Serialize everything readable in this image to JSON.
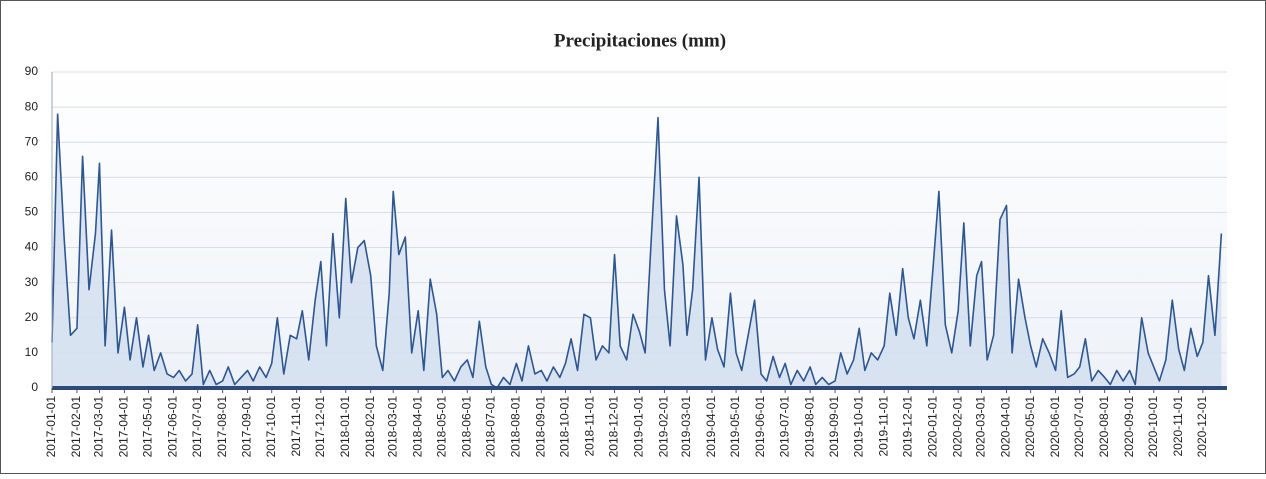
{
  "chart_data": {
    "type": "area",
    "title": "Precipitaciones (mm)",
    "x": [
      "2017-01-01",
      "2017-01-08",
      "2017-01-16",
      "2017-01-24",
      "2017-02-01",
      "2017-02-08",
      "2017-02-16",
      "2017-02-24",
      "2017-03-01",
      "2017-03-08",
      "2017-03-16",
      "2017-03-24",
      "2017-04-01",
      "2017-04-08",
      "2017-04-16",
      "2017-04-24",
      "2017-05-01",
      "2017-05-08",
      "2017-05-16",
      "2017-05-24",
      "2017-06-01",
      "2017-06-08",
      "2017-06-16",
      "2017-06-24",
      "2017-07-01",
      "2017-07-08",
      "2017-07-16",
      "2017-07-24",
      "2017-08-01",
      "2017-08-08",
      "2017-08-16",
      "2017-08-24",
      "2017-09-01",
      "2017-09-08",
      "2017-09-16",
      "2017-09-24",
      "2017-10-01",
      "2017-10-08",
      "2017-10-16",
      "2017-10-24",
      "2017-11-01",
      "2017-11-08",
      "2017-11-16",
      "2017-11-24",
      "2017-12-01",
      "2017-12-08",
      "2017-12-16",
      "2017-12-24",
      "2018-01-01",
      "2018-01-08",
      "2018-01-16",
      "2018-01-24",
      "2018-02-01",
      "2018-02-08",
      "2018-02-16",
      "2018-02-24",
      "2018-03-01",
      "2018-03-08",
      "2018-03-16",
      "2018-03-24",
      "2018-04-01",
      "2018-04-08",
      "2018-04-16",
      "2018-04-24",
      "2018-05-01",
      "2018-05-08",
      "2018-05-16",
      "2018-05-24",
      "2018-06-01",
      "2018-06-08",
      "2018-06-16",
      "2018-06-24",
      "2018-07-01",
      "2018-07-08",
      "2018-07-16",
      "2018-07-24",
      "2018-08-01",
      "2018-08-08",
      "2018-08-16",
      "2018-08-24",
      "2018-09-01",
      "2018-09-08",
      "2018-09-16",
      "2018-09-24",
      "2018-10-01",
      "2018-10-08",
      "2018-10-16",
      "2018-10-24",
      "2018-11-01",
      "2018-11-08",
      "2018-11-16",
      "2018-11-24",
      "2018-12-01",
      "2018-12-08",
      "2018-12-16",
      "2018-12-24",
      "2019-01-01",
      "2019-01-08",
      "2019-01-16",
      "2019-01-24",
      "2019-02-01",
      "2019-02-08",
      "2019-02-16",
      "2019-02-24",
      "2019-03-01",
      "2019-03-08",
      "2019-03-16",
      "2019-03-24",
      "2019-04-01",
      "2019-04-08",
      "2019-04-16",
      "2019-04-24",
      "2019-05-01",
      "2019-05-08",
      "2019-05-16",
      "2019-05-24",
      "2019-06-01",
      "2019-06-08",
      "2019-06-16",
      "2019-06-24",
      "2019-07-01",
      "2019-07-08",
      "2019-07-16",
      "2019-07-24",
      "2019-08-01",
      "2019-08-08",
      "2019-08-16",
      "2019-08-24",
      "2019-09-01",
      "2019-09-08",
      "2019-09-16",
      "2019-09-24",
      "2019-10-01",
      "2019-10-08",
      "2019-10-16",
      "2019-10-24",
      "2019-11-01",
      "2019-11-08",
      "2019-11-16",
      "2019-11-24",
      "2019-12-01",
      "2019-12-08",
      "2019-12-16",
      "2019-12-24",
      "2020-01-01",
      "2020-01-08",
      "2020-01-16",
      "2020-01-24",
      "2020-02-01",
      "2020-02-08",
      "2020-02-16",
      "2020-02-24",
      "2020-03-01",
      "2020-03-08",
      "2020-03-16",
      "2020-03-24",
      "2020-04-01",
      "2020-04-08",
      "2020-04-16",
      "2020-04-24",
      "2020-05-01",
      "2020-05-08",
      "2020-05-16",
      "2020-05-24",
      "2020-06-01",
      "2020-06-08",
      "2020-06-16",
      "2020-06-24",
      "2020-07-01",
      "2020-07-08",
      "2020-07-16",
      "2020-07-24",
      "2020-08-01",
      "2020-08-08",
      "2020-08-16",
      "2020-08-24",
      "2020-09-01",
      "2020-09-08",
      "2020-09-16",
      "2020-09-24",
      "2020-10-01",
      "2020-10-08",
      "2020-10-16",
      "2020-10-24",
      "2020-11-01",
      "2020-11-08",
      "2020-11-16",
      "2020-11-24",
      "2020-12-01",
      "2020-12-08",
      "2020-12-16",
      "2020-12-24"
    ],
    "series": [
      {
        "color": "#2e5790",
        "fill": "#d3dff0",
        "values": [
          13,
          78,
          43,
          15,
          17,
          66,
          28,
          44,
          64,
          12,
          45,
          10,
          23,
          8,
          20,
          6,
          15,
          5,
          10,
          4,
          3,
          5,
          2,
          4,
          18,
          1,
          5,
          1,
          2,
          6,
          1,
          3,
          5,
          2,
          6,
          3,
          7,
          20,
          4,
          15,
          14,
          22,
          8,
          25,
          36,
          12,
          44,
          20,
          54,
          30,
          40,
          42,
          32,
          12,
          5,
          27,
          56,
          38,
          43,
          10,
          22,
          5,
          31,
          21,
          3,
          5,
          2,
          6,
          8,
          3,
          19,
          6,
          1,
          0,
          3,
          1,
          7,
          2,
          12,
          4,
          5,
          2,
          6,
          3,
          7,
          14,
          5,
          21,
          20,
          8,
          12,
          10,
          38,
          12,
          8,
          21,
          16,
          10,
          44,
          77,
          28,
          12,
          49,
          35,
          15,
          28,
          60,
          8,
          20,
          11,
          6,
          27,
          10,
          5,
          15,
          25,
          4,
          2,
          9,
          3,
          7,
          1,
          5,
          2,
          6,
          1,
          3,
          1,
          2,
          10,
          4,
          8,
          17,
          5,
          10,
          8,
          12,
          27,
          15,
          34,
          20,
          14,
          25,
          12,
          35,
          56,
          18,
          10,
          22,
          47,
          12,
          32,
          36,
          8,
          15,
          48,
          52,
          10,
          31,
          20,
          12,
          6,
          14,
          10,
          5,
          22,
          3,
          4,
          6,
          14,
          2,
          5,
          3,
          1,
          5,
          2,
          5,
          1,
          20,
          10,
          6,
          2,
          8,
          25,
          11,
          5,
          17,
          9,
          13,
          32,
          15,
          44
        ]
      }
    ],
    "xlim": [
      "2017-01-01",
      "2020-12-31"
    ],
    "xticks": [
      "2017-01-01",
      "2017-02-01",
      "2017-03-01",
      "2017-04-01",
      "2017-05-01",
      "2017-06-01",
      "2017-07-01",
      "2017-08-01",
      "2017-09-01",
      "2017-10-01",
      "2017-11-01",
      "2017-12-01",
      "2018-01-01",
      "2018-02-01",
      "2018-03-01",
      "2018-04-01",
      "2018-05-01",
      "2018-06-01",
      "2018-07-01",
      "2018-08-01",
      "2018-09-01",
      "2018-10-01",
      "2018-11-01",
      "2018-12-01",
      "2019-01-01",
      "2019-02-01",
      "2019-03-01",
      "2019-04-01",
      "2019-05-01",
      "2019-06-01",
      "2019-07-01",
      "2019-08-01",
      "2019-09-01",
      "2019-10-01",
      "2019-11-01",
      "2019-12-01",
      "2020-01-01",
      "2020-02-01",
      "2020-03-01",
      "2020-04-01",
      "2020-05-01",
      "2020-06-01",
      "2020-07-01",
      "2020-08-01",
      "2020-09-01",
      "2020-10-01",
      "2020-11-01",
      "2020-12-01"
    ],
    "ylim": [
      0,
      90
    ],
    "yticks": [
      0,
      10,
      20,
      30,
      40,
      50,
      60,
      70,
      80,
      90
    ],
    "grid": true
  }
}
